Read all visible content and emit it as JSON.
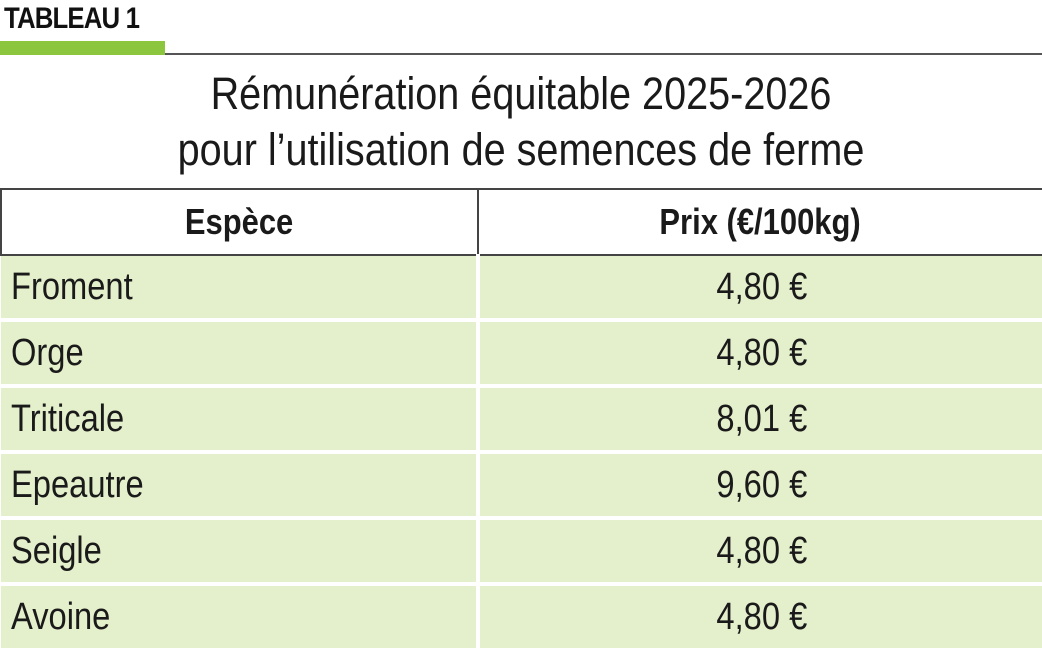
{
  "label": "TABLEAU 1",
  "colors": {
    "accent": "#8cc63f",
    "row_background": "#e4efcb",
    "rule": "#555555"
  },
  "title": {
    "line1": "Rémunération équitable 2025-2026",
    "line2": "pour l’utilisation de semences de ferme"
  },
  "table": {
    "headers": [
      "Espèce",
      "Prix (€/100kg)"
    ],
    "rows": [
      {
        "espece": "Froment",
        "prix": "4,80 €"
      },
      {
        "espece": "Orge",
        "prix": "4,80 €"
      },
      {
        "espece": "Triticale",
        "prix": "8,01 €"
      },
      {
        "espece": "Epeautre",
        "prix": "9,60 €"
      },
      {
        "espece": "Seigle",
        "prix": "4,80 €"
      },
      {
        "espece": "Avoine",
        "prix": "4,80 €"
      }
    ]
  }
}
